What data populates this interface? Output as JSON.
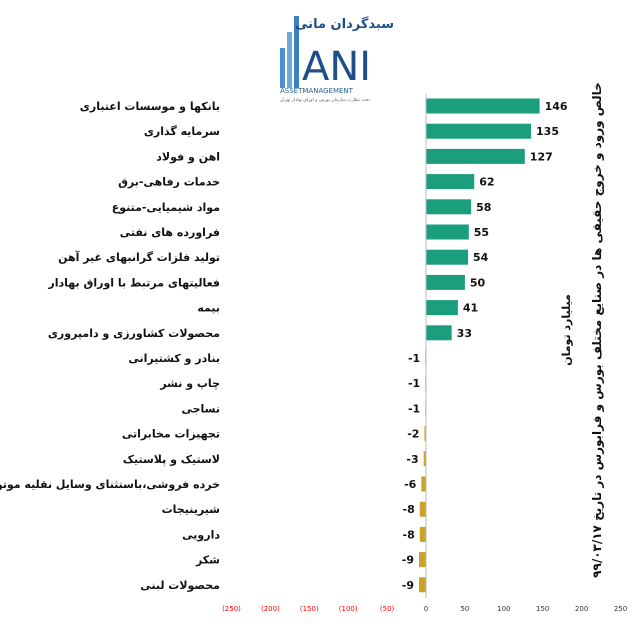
{
  "logo": {
    "name_fa": "سبدگردان مانی",
    "letters": "ANI",
    "subtitle": "ASSETMANAGEMENT",
    "tagline": "تحت نظارت سازمان بورس و اوراق بهادار تهران"
  },
  "chart_data": {
    "type": "bar",
    "orientation": "horizontal",
    "title": "خالص ورود و خروج حقیقی ها در صنایع مختلف بورس و فرابورس در تاریخ ۹۹/۰۳/۱۷",
    "unit_label": "میلیارد تومان",
    "categories": [
      "بانکها و موسسات اعتباری",
      "سرمایه گذاری",
      "اهن و فولاد",
      "خدمات رفاهی-برق",
      "مواد شیمیایی-متنوع",
      "فراورده های نفتی",
      "تولید فلزات گرانبهای غیر آهن",
      "فعالیتهای مرتبط با اوراق بهادار",
      "بیمه",
      "محصولات کشاورزی و دامپروری",
      "بنادر و کشتیرانی",
      "چاپ و نشر",
      "نساجی",
      "تجهیزات مخابراتی",
      "لاستیک و پلاستیک",
      "خرده فروشی،باستثنای وسایل نقلیه موتوری",
      "شیرینیجات",
      "دارویی",
      "شکر",
      "محصولات لبنی"
    ],
    "values": [
      146,
      135,
      127,
      62,
      58,
      55,
      54,
      50,
      41,
      33,
      -1,
      -1,
      -1,
      -2,
      -3,
      -6,
      -8,
      -8,
      -9,
      -9
    ],
    "value_labels": [
      "146",
      "135",
      "127",
      "62",
      "58",
      "55",
      "54",
      "50",
      "41",
      "33",
      "-1",
      "-1",
      "-1",
      "-2",
      "-3",
      "-6",
      "-8",
      "-8",
      "-9",
      "-9"
    ],
    "xlim": [
      -250,
      250
    ],
    "ticks": [
      -250,
      -200,
      -150,
      -100,
      -50,
      0,
      50,
      100,
      150,
      200,
      250
    ],
    "tick_labels": [
      "(250)",
      "(200)",
      "(150)",
      "(100)",
      "(50)",
      "0",
      "50",
      "100",
      "150",
      "200",
      "250"
    ],
    "colors": {
      "positive": "#1a9e7c",
      "negative": "#c9a227",
      "negative_tick": "#ff0000",
      "positive_tick": "#333333"
    },
    "grid": false,
    "legend": "none"
  }
}
